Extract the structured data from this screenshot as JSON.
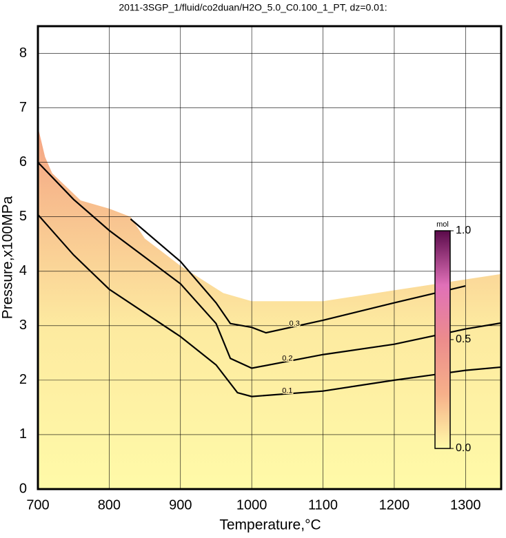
{
  "chart_data": {
    "type": "contour",
    "title": "2011-3SGP_1/fluid/co2duan/H2O_5.0_C0.100_1_PT, dz=0.01:",
    "x_label": "Temperature,°C",
    "y_label": "Pressure,x100MPa",
    "xlim": [
      700,
      1350
    ],
    "ylim": [
      0,
      8.5
    ],
    "xticks": [
      700,
      800,
      900,
      1000,
      1100,
      1200,
      1300
    ],
    "yticks": [
      0,
      1,
      2,
      3,
      4,
      5,
      6,
      7,
      8
    ],
    "grid": true,
    "domain": {
      "x": [
        700,
        710,
        720,
        740,
        760,
        800,
        830,
        850,
        880,
        900,
        930,
        960,
        1000,
        1100,
        1150,
        1200,
        1300,
        1350
      ],
      "values": [
        6.65,
        6.1,
        5.8,
        5.55,
        5.3,
        5.15,
        5.0,
        4.6,
        4.3,
        4.1,
        3.85,
        3.6,
        3.45,
        3.45,
        3.55,
        3.65,
        3.85,
        3.95
      ]
    },
    "series": [
      {
        "name": "0.1",
        "color": "#000000",
        "x": [
          700,
          750,
          800,
          900,
          950,
          980,
          1000,
          1100,
          1200,
          1300,
          1350
        ],
        "values": [
          5.04,
          4.3,
          3.67,
          2.8,
          2.28,
          1.77,
          1.7,
          1.8,
          2.0,
          2.18,
          2.24
        ]
      },
      {
        "name": "0.2",
        "color": "#000000",
        "x": [
          700,
          750,
          800,
          900,
          950,
          970,
          1000,
          1100,
          1200,
          1300,
          1350
        ],
        "values": [
          6.0,
          5.32,
          4.75,
          3.77,
          3.04,
          2.4,
          2.22,
          2.47,
          2.66,
          2.94,
          3.05
        ]
      },
      {
        "name": "0.3",
        "color": "#000000",
        "x": [
          830,
          900,
          950,
          970,
          1000,
          1020,
          1100,
          1200,
          1300
        ],
        "values": [
          4.96,
          4.18,
          3.42,
          3.04,
          2.97,
          2.87,
          3.1,
          3.42,
          3.73
        ]
      }
    ],
    "colorbar": {
      "label": "mol",
      "lim": [
        0,
        1
      ],
      "ticks": [
        {
          "value": 0,
          "label": "0.0"
        },
        {
          "value": 0.5,
          "label": "0.5"
        },
        {
          "value": 1,
          "label": "1.0"
        }
      ],
      "colors": [
        "#fffaa8",
        "#f6b08a",
        "#ec8c8c",
        "#e070b8",
        "#5a0a4a"
      ]
    }
  }
}
